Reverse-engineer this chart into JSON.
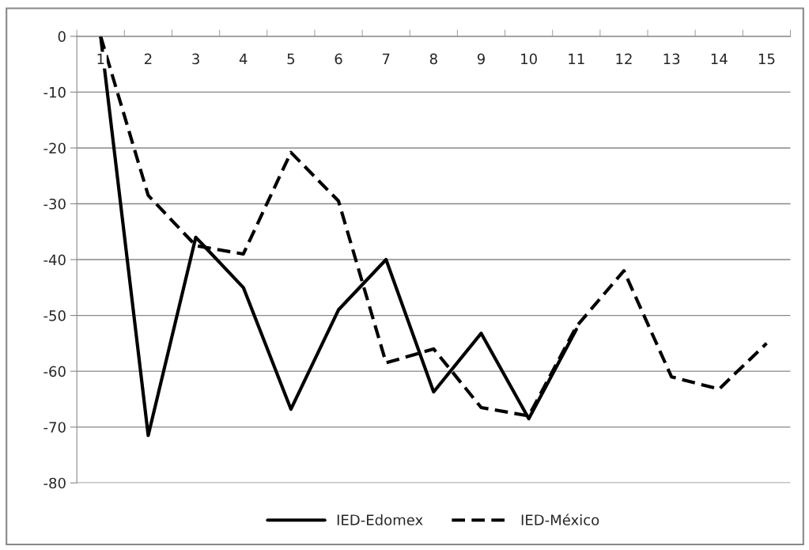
{
  "chart_data": {
    "type": "line",
    "categories": [
      "1",
      "2",
      "3",
      "4",
      "5",
      "6",
      "7",
      "8",
      "9",
      "10",
      "11",
      "12",
      "13",
      "14",
      "15"
    ],
    "series": [
      {
        "name": "IED-Edomex",
        "color": "#000000",
        "line_style": "solid",
        "values": [
          0,
          -71.5,
          -36,
          -45,
          -66.8,
          -49,
          -40,
          -63.7,
          -53.2,
          -68.5,
          -52.5,
          null,
          null,
          null,
          null
        ]
      },
      {
        "name": "IED-México",
        "color": "#000000",
        "line_style": "dashed",
        "values": [
          0,
          -28.5,
          -37.5,
          -39,
          -20.8,
          -29.5,
          -58.5,
          -56,
          -66.5,
          -68,
          -52,
          -42,
          -61,
          -63.2,
          -55
        ]
      }
    ],
    "ylim": [
      -80,
      0
    ],
    "yticks": [
      -80,
      -70,
      -60,
      -50,
      -40,
      -30,
      -20,
      -10,
      0
    ],
    "grid": "y",
    "legend": "bottom",
    "marker": "none"
  }
}
